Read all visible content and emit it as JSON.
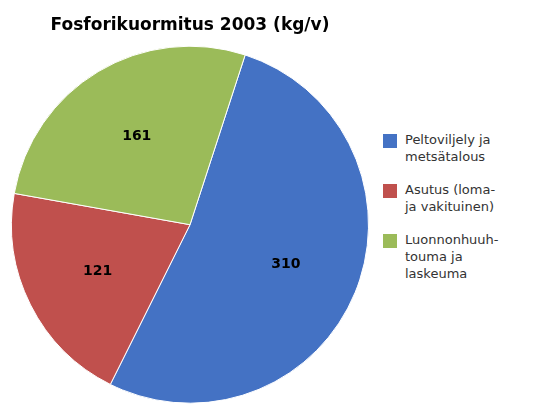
{
  "chart_data": {
    "type": "pie",
    "title": "Fosforikuormitus 2003 (kg/v)",
    "categories": [
      "Peltoviljely ja\nmetsätalous",
      "Asutus (loma-\nja vakituinen)",
      "Luonnonhuuh-\ntouma ja\nlaskeuma"
    ],
    "values": [
      310,
      121,
      161
    ],
    "colors": [
      "#4472C4",
      "#C0504D",
      "#9BBB59"
    ],
    "data_labels": true,
    "legend": "right"
  }
}
